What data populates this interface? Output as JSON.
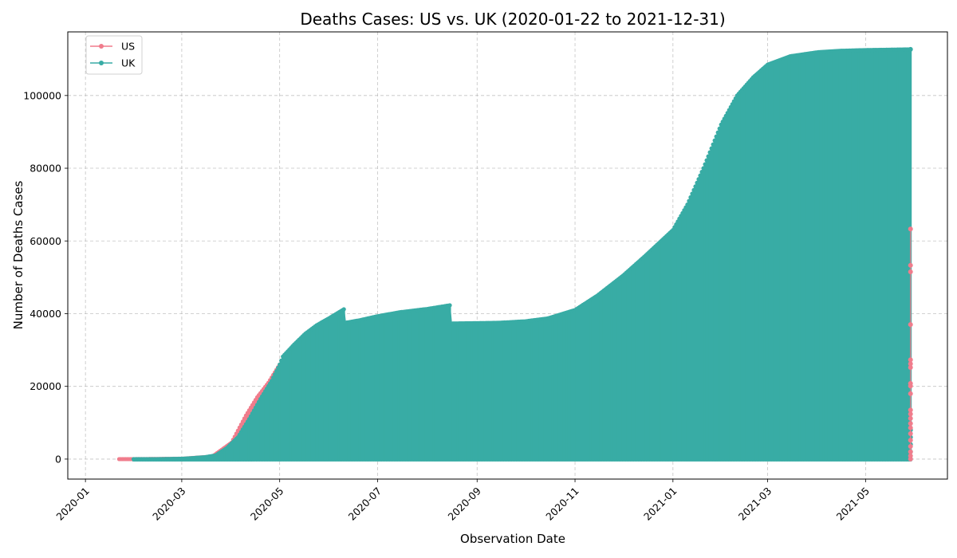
{
  "chart_data": {
    "type": "line",
    "title": "Deaths Cases: US vs. UK (2020-01-22 to 2021-12-31)",
    "xlabel": "Observation Date",
    "ylabel": "Number of Deaths Cases",
    "x_range": [
      "2019-12-21",
      "2021-06-21"
    ],
    "ylim": [
      -5500,
      117500
    ],
    "x_ticks": [
      "2020-01",
      "2020-03",
      "2020-05",
      "2020-07",
      "2020-09",
      "2020-11",
      "2021-01",
      "2021-03",
      "2021-05"
    ],
    "y_ticks": [
      0,
      20000,
      40000,
      60000,
      80000,
      100000
    ],
    "grid": true,
    "legend": "top-left",
    "series": [
      {
        "name": "US",
        "color": "#f07c8c",
        "note_style": "markers at daily values; per-date values span from 0 up to the max observed",
        "points": [
          [
            "2020-01-22",
            0
          ],
          [
            "2020-02-01",
            0
          ],
          [
            "2020-03-01",
            100
          ],
          [
            "2020-03-20",
            700
          ],
          [
            "2020-04-01",
            4500
          ],
          [
            "2020-04-10",
            12000
          ],
          [
            "2020-04-17",
            17000
          ],
          [
            "2020-04-24",
            21000
          ],
          [
            "2020-05-01",
            26000
          ]
        ],
        "spikes_2021_05_29": [
          63300,
          53300,
          51500,
          37000,
          27300,
          26200,
          25200,
          20800,
          20100,
          18000,
          13500,
          12400,
          11200,
          9800,
          8600,
          7000,
          5200,
          3500,
          2000,
          900,
          0
        ]
      },
      {
        "name": "UK",
        "color": "#38aca5",
        "points": [
          [
            "2020-01-31",
            0
          ],
          [
            "2020-02-15",
            0
          ],
          [
            "2020-03-01",
            100
          ],
          [
            "2020-03-15",
            500
          ],
          [
            "2020-03-22",
            1000
          ],
          [
            "2020-03-29",
            3000
          ],
          [
            "2020-04-05",
            6000
          ],
          [
            "2020-04-12",
            11000
          ],
          [
            "2020-04-19",
            16500
          ],
          [
            "2020-04-26",
            21500
          ],
          [
            "2020-05-01",
            26000
          ],
          [
            "2020-05-03",
            28200
          ],
          [
            "2020-05-10",
            31500
          ],
          [
            "2020-05-17",
            34500
          ],
          [
            "2020-05-24",
            36800
          ],
          [
            "2020-06-01",
            38800
          ],
          [
            "2020-06-10",
            41200
          ],
          [
            "2020-06-11",
            37500
          ],
          [
            "2020-06-20",
            38200
          ],
          [
            "2020-07-01",
            39300
          ],
          [
            "2020-07-15",
            40400
          ],
          [
            "2020-08-01",
            41300
          ],
          [
            "2020-08-15",
            42300
          ],
          [
            "2020-08-16",
            37300
          ],
          [
            "2020-09-01",
            37400
          ],
          [
            "2020-09-15",
            37500
          ],
          [
            "2020-10-01",
            37900
          ],
          [
            "2020-10-15",
            38700
          ],
          [
            "2020-11-01",
            41000
          ],
          [
            "2020-11-15",
            45000
          ],
          [
            "2020-12-01",
            50500
          ],
          [
            "2020-12-15",
            56000
          ],
          [
            "2021-01-01",
            63000
          ],
          [
            "2021-01-10",
            70000
          ],
          [
            "2021-01-20",
            80000
          ],
          [
            "2021-01-31",
            92000
          ],
          [
            "2021-02-10",
            100000
          ],
          [
            "2021-02-20",
            105000
          ],
          [
            "2021-03-01",
            108500
          ],
          [
            "2021-03-15",
            110800
          ],
          [
            "2021-04-01",
            111900
          ],
          [
            "2021-04-15",
            112300
          ],
          [
            "2021-05-01",
            112500
          ],
          [
            "2021-05-29",
            112700
          ]
        ],
        "spikes_2021_05_29": [
          112700,
          8000,
          6000,
          4000,
          2000,
          0
        ]
      }
    ]
  }
}
